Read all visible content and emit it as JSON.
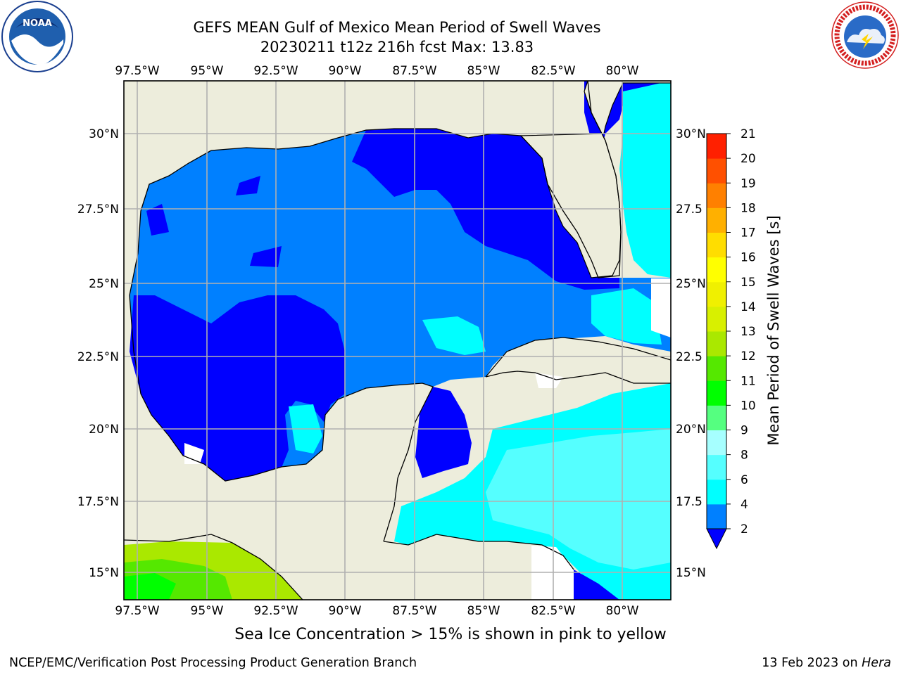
{
  "title": {
    "line1": "GEFS MEAN Gulf of Mexico Mean Period of Swell Waves",
    "line2": "20230211 t12z 216h fcst   Max: 13.83"
  },
  "logos": {
    "left": {
      "icon": "noaa-logo",
      "text": "NOAA"
    },
    "right": {
      "icon": "nws-logo",
      "text": "NATIONAL WEATHER SERVICE"
    }
  },
  "map": {
    "lon_ticks": [
      "97.5°W",
      "95°W",
      "92.5°W",
      "90°W",
      "87.5°W",
      "85°W",
      "82.5°W",
      "80°W"
    ],
    "lat_ticks_left": [
      "30°N",
      "27.5°N",
      "25°N",
      "22.5°N",
      "20°N",
      "17.5°N",
      "15°N"
    ],
    "lat_ticks_right": [
      "30°N",
      "27.5",
      "25°N",
      "22.5",
      "20°N",
      "17.5",
      "15°N"
    ],
    "lon_range": [
      -98,
      -78.25
    ],
    "lat_range": [
      14,
      31.9
    ],
    "colors": {
      "land": "#ededdc",
      "ocean_mask": "#ffffff",
      "grid": "#b0b0b0"
    }
  },
  "colorbar": {
    "label": "Mean Period of Swell Waves [s]",
    "ticks": [
      "2",
      "4",
      "6",
      "8",
      "9",
      "10",
      "11",
      "12",
      "13",
      "14",
      "15",
      "16",
      "17",
      "18",
      "19",
      "20",
      "21"
    ],
    "colors": [
      "#0000ff",
      "#0080ff",
      "#00ffff",
      "#55ffff",
      "#a6ffff",
      "#55ff80",
      "#00ff00",
      "#55e800",
      "#aae800",
      "#d8f000",
      "#f0f000",
      "#ffff00",
      "#ffdd00",
      "#ffb000",
      "#ff8000",
      "#ff5000",
      "#ff2000",
      "#ff0000"
    ],
    "extend": "min"
  },
  "chart_data": {
    "type": "heatmap",
    "title": "GEFS MEAN Gulf of Mexico Mean Period of Swell Waves",
    "subtitle": "20230211 t12z 216h fcst   Max: 13.83",
    "variable": "Mean Period of Swell Waves [s]",
    "max": 13.83,
    "levels": [
      2,
      4,
      6,
      8,
      9,
      10,
      11,
      12,
      13,
      14,
      15,
      16,
      17,
      18,
      19,
      20,
      21
    ],
    "extend": "min",
    "lon_range": [
      -98,
      -78.25
    ],
    "lat_range": [
      14,
      31.9
    ]
  },
  "footer": {
    "note": "Sea Ice Concentration > 15% is shown in pink to yellow",
    "left": "NCEP/EMC/Verification Post Processing Product Generation Branch",
    "right_date": "13 Feb 2023 on ",
    "right_host": "Hera"
  }
}
